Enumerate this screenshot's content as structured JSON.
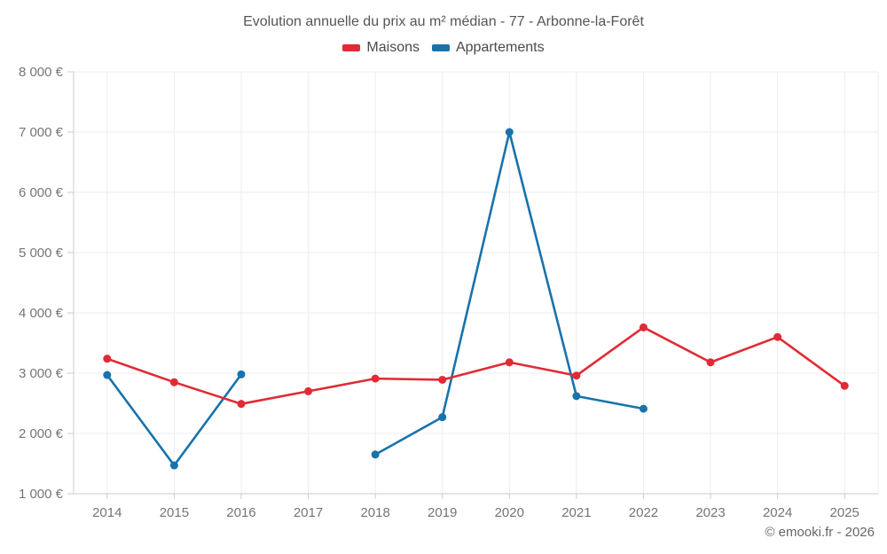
{
  "footer": "© emooki.fr - 2026",
  "chart_data": {
    "type": "line",
    "title": "Evolution annuelle du prix au m² médian - 77 - Arbonne-la-Forêt",
    "categories": [
      "2014",
      "2015",
      "2016",
      "2017",
      "2018",
      "2019",
      "2020",
      "2021",
      "2022",
      "2023",
      "2024",
      "2025"
    ],
    "series": [
      {
        "name": "Maisons",
        "color": "#e02b35",
        "values": [
          3240,
          2850,
          2490,
          2700,
          2910,
          2890,
          3180,
          2960,
          3760,
          3180,
          3600,
          2790
        ]
      },
      {
        "name": "Appartements",
        "color": "#1873ac",
        "values": [
          2970,
          1470,
          2980,
          null,
          1650,
          2270,
          7000,
          2620,
          2410,
          null,
          null,
          null
        ]
      }
    ],
    "xlabel": "",
    "ylabel": "",
    "ylim": [
      1000,
      8000
    ],
    "ytick_step": 1000,
    "ytick_labels": [
      "1 000 €",
      "2 000 €",
      "3 000 €",
      "4 000 €",
      "5 000 €",
      "6 000 €",
      "7 000 €",
      "8 000 €"
    ],
    "grid": true,
    "legend_position": "top",
    "styles": {
      "background": "#ffffff",
      "grid_color": "#ededed",
      "axis_color": "#cccccc",
      "tick_label_color": "#757575",
      "point_radius": 4.5,
      "line_width": 2.6
    }
  }
}
